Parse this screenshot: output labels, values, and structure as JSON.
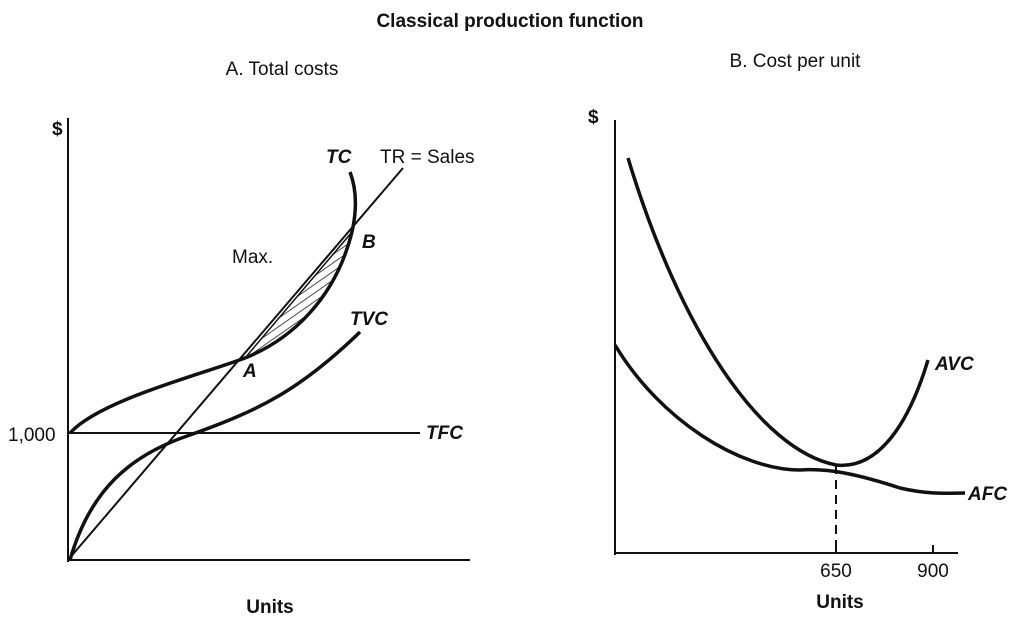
{
  "title": "Classical production function",
  "panels": [
    {
      "title": "A. Total costs",
      "y_label": "$",
      "x_label": "Units",
      "y_tick": "1,000",
      "labels": [
        "TC",
        "TR = Sales",
        "Max.",
        "B",
        "A",
        "TVC",
        "TFC"
      ]
    },
    {
      "title": "B. Cost per unit",
      "y_label": "$",
      "x_label": "Units",
      "x_ticks": [
        "650",
        "900"
      ],
      "labels": [
        "AVC",
        "AFC"
      ]
    }
  ]
}
